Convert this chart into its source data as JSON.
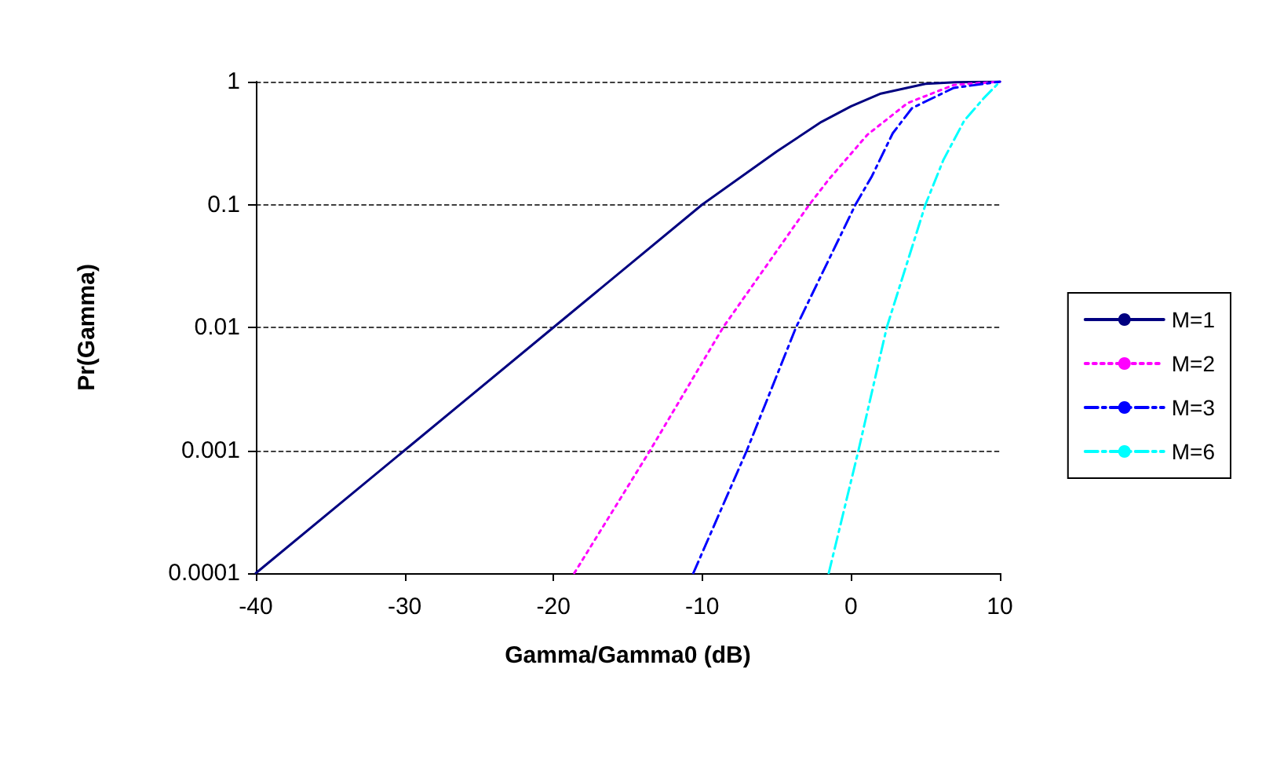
{
  "chart_data": {
    "type": "line",
    "xlabel": "Gamma/Gamma0 (dB)",
    "ylabel": "Pr(Gamma)",
    "xlim": [
      -40,
      10
    ],
    "xticks": [
      -40,
      -30,
      -20,
      -10,
      0,
      10
    ],
    "ylim": [
      0.0001,
      1
    ],
    "yticks": [
      0.0001,
      0.001,
      0.01,
      0.1,
      1
    ],
    "log": "y",
    "grid": "y",
    "legend": "right",
    "marker": "none",
    "series": [
      {
        "name": "M=1",
        "color": "#000080",
        "line_style": "solid",
        "x": [
          -40,
          -30,
          -20,
          -10,
          -5,
          -2,
          0,
          2,
          5,
          7,
          10
        ],
        "values": [
          0.0001,
          0.001,
          0.01,
          0.1,
          0.27,
          0.47,
          0.63,
          0.8,
          0.96,
          0.99,
          1
        ]
      },
      {
        "name": "M=2",
        "color": "#ff00ff",
        "line_style": "dotted",
        "x": [
          -18.6,
          -13.5,
          -8.6,
          -2.8,
          -1.5,
          1.1,
          3.8,
          6.9,
          10
        ],
        "values": [
          0.0001,
          0.001,
          0.01,
          0.1,
          0.16,
          0.37,
          0.67,
          0.94,
          1
        ]
      },
      {
        "name": "M=3",
        "color": "#0000ff",
        "line_style": "dashed",
        "x": [
          -10.6,
          -7,
          -3.7,
          0.3,
          1.4,
          2.8,
          4.1,
          6.9,
          10
        ],
        "values": [
          0.0001,
          0.001,
          0.01,
          0.1,
          0.17,
          0.38,
          0.61,
          0.89,
          1
        ]
      },
      {
        "name": "M=6",
        "color": "#00ffff",
        "line_style": "dashed",
        "x": [
          -1.5,
          0.5,
          2.4,
          5,
          6.2,
          7.6,
          8.9,
          10
        ],
        "values": [
          0.0001,
          0.001,
          0.01,
          0.1,
          0.23,
          0.48,
          0.73,
          1
        ]
      }
    ]
  }
}
